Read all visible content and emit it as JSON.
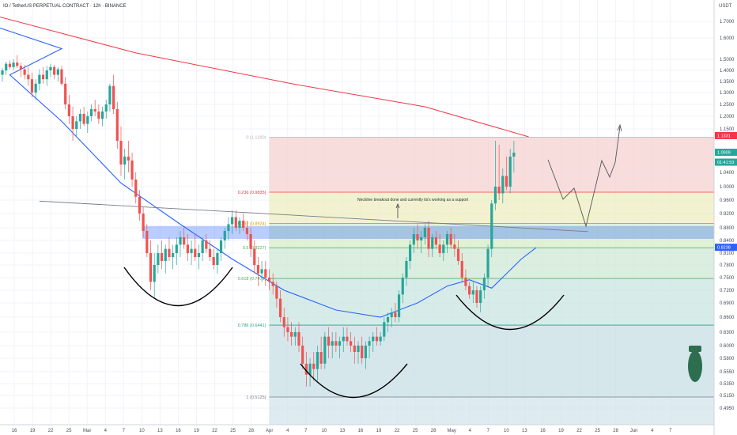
{
  "header": {
    "title": "IO / TetherUS PERPETUAL CONTRACT · 12h · BINANCE"
  },
  "currency": "USDT",
  "colors": {
    "up": "#26a69a",
    "down": "#ef5350",
    "ma_red": "#f23645",
    "ma_blue": "#2962ff",
    "zone": "#2962ff",
    "neck": "#787b86",
    "cup": "#000000",
    "proj": "#555555"
  },
  "chart_data": {
    "type": "candlestick",
    "y_ticks": [
      "1.7000",
      "1.6000",
      "1.5000",
      "1.4000",
      "1.3500",
      "1.3000",
      "1.2500",
      "1.2000",
      "1.1500",
      "1.0400",
      "1.0000",
      "0.9600",
      "0.9200",
      "0.8800",
      "0.8400",
      "0.8100",
      "0.7800",
      "0.7500",
      "0.7200",
      "0.6900",
      "0.6600",
      "0.6300",
      "0.6000",
      "0.5800",
      "0.5550",
      "0.5350",
      "0.5150",
      "0.4950"
    ],
    "x_ticks": [
      "16",
      "19",
      "22",
      "25",
      "Mar",
      "4",
      "7",
      "10",
      "13",
      "16",
      "19",
      "22",
      "25",
      "28",
      "Apr",
      "4",
      "7",
      "10",
      "13",
      "16",
      "19",
      "22",
      "25",
      "28",
      "May",
      "4",
      "7",
      "10",
      "13",
      "16",
      "19",
      "22",
      "25",
      "28",
      "Jun",
      "4",
      "7"
    ],
    "price_tags": [
      {
        "text": "1.1331",
        "y": 1.1331,
        "color": "#f23645"
      },
      {
        "text": "1.0909",
        "y": 1.0909,
        "color": "#26a69a"
      },
      {
        "text": "01:41:53",
        "y": 1.066,
        "color": "#26a69a"
      },
      {
        "text": "0.8238",
        "y": 0.8238,
        "color": "#2962ff"
      }
    ],
    "fib_levels": [
      {
        "label": "0 (1.1290)",
        "y": 1.129,
        "color": "#b2b5be"
      },
      {
        "label": "0.236 (0.9835)",
        "y": 0.9835,
        "color": "#f23645"
      },
      {
        "label": "0.382 (0.8924)",
        "y": 0.8924,
        "color": "#c9a300"
      },
      {
        "label": "0.5 (0.8227)",
        "y": 0.8227,
        "color": "#4caf50"
      },
      {
        "label": "0.618 (0.7479)",
        "y": 0.7479,
        "color": "#4caf50"
      },
      {
        "label": "0.786 (0.6441)",
        "y": 0.6441,
        "color": "#2b9e8d"
      },
      {
        "label": "1 (0.5125)",
        "y": 0.5125,
        "color": "#787b86"
      }
    ],
    "fib_start_date": "Apr 7",
    "support_zone": {
      "low": 0.845,
      "high": 0.885
    },
    "neckline": {
      "from": {
        "x": "Mar 7",
        "y": 0.957
      },
      "to": {
        "x": "May 20",
        "y": 0.868
      }
    },
    "annotation": "Neckline breakout done and currently its's working as a support",
    "ma_red": {
      "name": "",
      "points": [
        [
          "Feb 9",
          1.9
        ],
        [
          "Mar 1",
          1.78
        ],
        [
          "Mar 20",
          1.53
        ],
        [
          "Apr 10",
          1.34
        ],
        [
          "Apr 28",
          1.24
        ],
        [
          "May 12",
          1.13
        ]
      ]
    },
    "ma_blue": {
      "name": "",
      "points": [
        [
          "Feb 13",
          1.7
        ],
        [
          "Feb 24",
          1.55
        ],
        [
          "Mar 3",
          1.38
        ],
        [
          "Mar 10",
          1.18
        ],
        [
          "Mar 18",
          1.01
        ],
        [
          "Mar 26",
          0.89
        ],
        [
          "Apr 2",
          0.795
        ],
        [
          "Apr 9",
          0.72
        ],
        [
          "Apr 16",
          0.675
        ],
        [
          "Apr 22",
          0.66
        ],
        [
          "Apr 27",
          0.69
        ],
        [
          "May 1",
          0.73
        ],
        [
          "May 4",
          0.745
        ],
        [
          "May 7",
          0.725
        ],
        [
          "May 11",
          0.795
        ],
        [
          "May 13",
          0.823
        ]
      ]
    },
    "candles": [
      [
        0.0,
        1.38,
        1.42,
        1.35,
        1.4
      ],
      [
        0.5,
        1.4,
        1.48,
        1.38,
        1.46
      ],
      [
        1.0,
        1.46,
        1.49,
        1.41,
        1.43
      ],
      [
        1.5,
        1.43,
        1.5,
        1.4,
        1.47
      ],
      [
        2.0,
        1.47,
        1.52,
        1.42,
        1.44
      ],
      [
        2.5,
        1.44,
        1.47,
        1.37,
        1.41
      ],
      [
        3.0,
        1.41,
        1.45,
        1.36,
        1.38
      ],
      [
        3.5,
        1.38,
        1.43,
        1.33,
        1.36
      ],
      [
        4.0,
        1.36,
        1.39,
        1.28,
        1.3
      ],
      [
        4.5,
        1.3,
        1.36,
        1.27,
        1.34
      ],
      [
        5.0,
        1.34,
        1.41,
        1.31,
        1.38
      ],
      [
        5.5,
        1.38,
        1.43,
        1.34,
        1.36
      ],
      [
        6.0,
        1.36,
        1.44,
        1.33,
        1.4
      ],
      [
        6.5,
        1.4,
        1.46,
        1.37,
        1.43
      ],
      [
        7.0,
        1.43,
        1.45,
        1.36,
        1.38
      ],
      [
        7.5,
        1.38,
        1.43,
        1.35,
        1.41
      ],
      [
        8.0,
        1.41,
        1.44,
        1.33,
        1.34
      ],
      [
        8.5,
        1.34,
        1.37,
        1.23,
        1.25
      ],
      [
        9.0,
        1.25,
        1.29,
        1.17,
        1.2
      ],
      [
        9.5,
        1.2,
        1.24,
        1.12,
        1.15
      ],
      [
        10.0,
        1.15,
        1.2,
        1.13,
        1.18
      ],
      [
        10.5,
        1.18,
        1.23,
        1.15,
        1.21
      ],
      [
        11.0,
        1.21,
        1.24,
        1.16,
        1.17
      ],
      [
        11.5,
        1.17,
        1.22,
        1.14,
        1.2
      ],
      [
        12.0,
        1.2,
        1.25,
        1.18,
        1.23
      ],
      [
        12.5,
        1.23,
        1.27,
        1.2,
        1.22
      ],
      [
        13.0,
        1.22,
        1.25,
        1.17,
        1.19
      ],
      [
        13.5,
        1.19,
        1.24,
        1.16,
        1.22
      ],
      [
        14.0,
        1.22,
        1.27,
        1.19,
        1.25
      ],
      [
        14.5,
        1.25,
        1.34,
        1.22,
        1.33
      ],
      [
        15.0,
        1.33,
        1.38,
        1.21,
        1.23
      ],
      [
        15.5,
        1.23,
        1.26,
        1.1,
        1.12
      ],
      [
        16.0,
        1.12,
        1.16,
        1.03,
        1.06
      ],
      [
        16.5,
        1.06,
        1.1,
        1.02,
        1.08
      ],
      [
        17.0,
        1.08,
        1.12,
        1.04,
        1.07
      ],
      [
        17.5,
        1.07,
        1.09,
        1.0,
        1.02
      ],
      [
        18.0,
        1.02,
        1.04,
        0.95,
        0.97
      ],
      [
        18.5,
        0.97,
        0.99,
        0.9,
        0.92
      ],
      [
        19.0,
        0.92,
        0.94,
        0.85,
        0.87
      ],
      [
        19.5,
        0.87,
        0.89,
        0.8,
        0.81
      ],
      [
        20.0,
        0.81,
        0.84,
        0.72,
        0.74
      ],
      [
        20.5,
        0.74,
        0.81,
        0.7,
        0.78
      ],
      [
        21.0,
        0.78,
        0.83,
        0.76,
        0.81
      ],
      [
        21.5,
        0.81,
        0.84,
        0.77,
        0.79
      ],
      [
        22.0,
        0.79,
        0.83,
        0.76,
        0.82
      ],
      [
        22.5,
        0.82,
        0.85,
        0.79,
        0.8
      ],
      [
        23.0,
        0.8,
        0.83,
        0.77,
        0.81
      ],
      [
        23.5,
        0.81,
        0.85,
        0.78,
        0.83
      ],
      [
        24.0,
        0.83,
        0.87,
        0.8,
        0.85
      ],
      [
        24.5,
        0.85,
        0.88,
        0.82,
        0.83
      ],
      [
        25.0,
        0.83,
        0.86,
        0.79,
        0.81
      ],
      [
        25.5,
        0.81,
        0.84,
        0.78,
        0.82
      ],
      [
        26.0,
        0.82,
        0.86,
        0.79,
        0.8
      ],
      [
        26.5,
        0.8,
        0.83,
        0.77,
        0.81
      ],
      [
        27.0,
        0.81,
        0.85,
        0.79,
        0.84
      ],
      [
        27.5,
        0.84,
        0.86,
        0.81,
        0.82
      ],
      [
        28.0,
        0.82,
        0.84,
        0.79,
        0.8
      ],
      [
        28.5,
        0.8,
        0.82,
        0.77,
        0.78
      ],
      [
        29.0,
        0.78,
        0.82,
        0.76,
        0.81
      ],
      [
        29.5,
        0.81,
        0.85,
        0.79,
        0.84
      ],
      [
        30.0,
        0.84,
        0.88,
        0.82,
        0.87
      ],
      [
        30.5,
        0.87,
        0.91,
        0.84,
        0.89
      ],
      [
        31.0,
        0.89,
        0.93,
        0.86,
        0.91
      ],
      [
        31.5,
        0.91,
        0.93,
        0.87,
        0.88
      ],
      [
        32.0,
        0.88,
        0.91,
        0.86,
        0.9
      ],
      [
        32.5,
        0.9,
        0.92,
        0.87,
        0.88
      ],
      [
        33.0,
        0.88,
        0.9,
        0.84,
        0.86
      ],
      [
        33.5,
        0.86,
        0.88,
        0.8,
        0.82
      ],
      [
        34.0,
        0.82,
        0.84,
        0.76,
        0.78
      ],
      [
        34.5,
        0.78,
        0.8,
        0.73,
        0.76
      ],
      [
        35.0,
        0.76,
        0.79,
        0.74,
        0.77
      ],
      [
        35.5,
        0.77,
        0.79,
        0.73,
        0.75
      ],
      [
        36.0,
        0.75,
        0.77,
        0.72,
        0.74
      ],
      [
        36.5,
        0.74,
        0.76,
        0.71,
        0.73
      ],
      [
        37.0,
        0.73,
        0.74,
        0.68,
        0.7
      ],
      [
        37.5,
        0.7,
        0.72,
        0.65,
        0.66
      ],
      [
        38.0,
        0.66,
        0.68,
        0.62,
        0.64
      ],
      [
        38.5,
        0.64,
        0.66,
        0.61,
        0.63
      ],
      [
        39.0,
        0.63,
        0.65,
        0.6,
        0.62
      ],
      [
        39.5,
        0.62,
        0.64,
        0.6,
        0.63
      ],
      [
        40.0,
        0.63,
        0.65,
        0.59,
        0.6
      ],
      [
        40.5,
        0.6,
        0.62,
        0.56,
        0.57
      ],
      [
        41.0,
        0.57,
        0.59,
        0.53,
        0.55
      ],
      [
        41.5,
        0.55,
        0.58,
        0.53,
        0.57
      ],
      [
        42.0,
        0.57,
        0.59,
        0.54,
        0.56
      ],
      [
        42.5,
        0.56,
        0.6,
        0.54,
        0.59
      ],
      [
        43.0,
        0.59,
        0.62,
        0.56,
        0.57
      ],
      [
        43.5,
        0.57,
        0.63,
        0.56,
        0.62
      ],
      [
        44.0,
        0.62,
        0.64,
        0.58,
        0.6
      ],
      [
        44.5,
        0.6,
        0.63,
        0.58,
        0.61
      ],
      [
        45.0,
        0.61,
        0.63,
        0.59,
        0.6
      ],
      [
        45.5,
        0.6,
        0.62,
        0.58,
        0.61
      ],
      [
        46.0,
        0.61,
        0.64,
        0.59,
        0.62
      ],
      [
        46.5,
        0.62,
        0.64,
        0.6,
        0.61
      ],
      [
        47.0,
        0.61,
        0.63,
        0.59,
        0.6
      ],
      [
        47.5,
        0.6,
        0.62,
        0.57,
        0.59
      ],
      [
        48.0,
        0.59,
        0.61,
        0.57,
        0.6
      ],
      [
        48.5,
        0.6,
        0.62,
        0.57,
        0.58
      ],
      [
        49.0,
        0.58,
        0.61,
        0.56,
        0.6
      ],
      [
        49.5,
        0.6,
        0.62,
        0.58,
        0.61
      ],
      [
        50.0,
        0.61,
        0.63,
        0.59,
        0.62
      ],
      [
        50.5,
        0.62,
        0.64,
        0.6,
        0.61
      ],
      [
        51.0,
        0.61,
        0.63,
        0.6,
        0.62
      ],
      [
        51.5,
        0.62,
        0.66,
        0.61,
        0.65
      ],
      [
        52.0,
        0.65,
        0.67,
        0.63,
        0.66
      ],
      [
        52.5,
        0.66,
        0.68,
        0.64,
        0.67
      ],
      [
        53.0,
        0.67,
        0.69,
        0.65,
        0.66
      ],
      [
        53.5,
        0.66,
        0.72,
        0.65,
        0.71
      ],
      [
        54.0,
        0.71,
        0.76,
        0.69,
        0.75
      ],
      [
        54.5,
        0.75,
        0.8,
        0.73,
        0.79
      ],
      [
        55.0,
        0.79,
        0.84,
        0.77,
        0.83
      ],
      [
        55.5,
        0.83,
        0.88,
        0.81,
        0.86
      ],
      [
        56.0,
        0.86,
        0.89,
        0.82,
        0.84
      ],
      [
        56.5,
        0.84,
        0.87,
        0.81,
        0.85
      ],
      [
        57.0,
        0.85,
        0.89,
        0.83,
        0.88
      ],
      [
        57.5,
        0.88,
        0.9,
        0.8,
        0.82
      ],
      [
        58.0,
        0.82,
        0.86,
        0.8,
        0.85
      ],
      [
        58.5,
        0.85,
        0.87,
        0.82,
        0.83
      ],
      [
        59.0,
        0.83,
        0.86,
        0.8,
        0.81
      ],
      [
        59.5,
        0.81,
        0.84,
        0.79,
        0.83
      ],
      [
        60.0,
        0.83,
        0.87,
        0.81,
        0.86
      ],
      [
        60.5,
        0.86,
        0.88,
        0.82,
        0.83
      ],
      [
        61.0,
        0.83,
        0.86,
        0.8,
        0.82
      ],
      [
        61.5,
        0.82,
        0.84,
        0.78,
        0.79
      ],
      [
        62.0,
        0.79,
        0.81,
        0.74,
        0.75
      ],
      [
        62.5,
        0.75,
        0.77,
        0.72,
        0.73
      ],
      [
        63.0,
        0.73,
        0.74,
        0.7,
        0.71
      ],
      [
        63.5,
        0.71,
        0.74,
        0.69,
        0.72
      ],
      [
        64.0,
        0.72,
        0.73,
        0.68,
        0.69
      ],
      [
        64.5,
        0.69,
        0.73,
        0.67,
        0.72
      ],
      [
        65.0,
        0.72,
        0.76,
        0.7,
        0.75
      ],
      [
        65.5,
        0.75,
        0.83,
        0.73,
        0.82
      ],
      [
        66.0,
        0.82,
        0.96,
        0.8,
        0.95
      ],
      [
        66.5,
        0.95,
        1.12,
        0.93,
        1.0
      ],
      [
        67.0,
        1.0,
        1.11,
        0.96,
        0.98
      ],
      [
        67.5,
        0.98,
        1.05,
        0.95,
        1.03
      ],
      [
        68.0,
        1.03,
        1.08,
        0.99,
        1.0
      ],
      [
        68.5,
        1.0,
        1.1,
        0.98,
        1.08
      ],
      [
        69.0,
        1.08,
        1.12,
        1.04,
        1.09
      ]
    ]
  }
}
